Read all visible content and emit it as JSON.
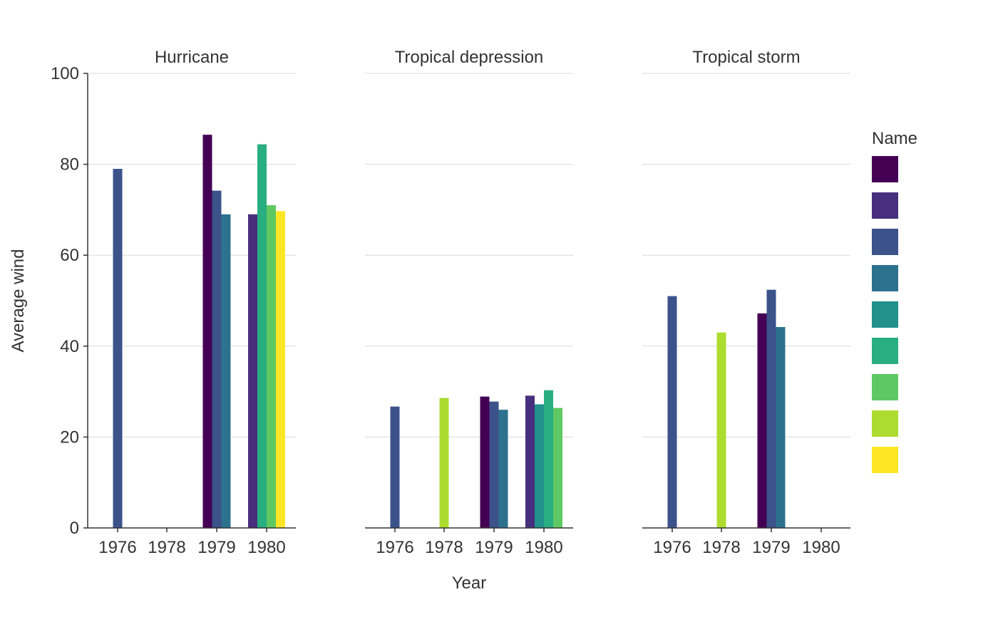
{
  "chart_data": {
    "type": "bar",
    "ylabel": "Average wind",
    "xlabel": "Year",
    "ylim": [
      0,
      100
    ],
    "yticks": [
      0,
      20,
      40,
      60,
      80,
      100
    ],
    "grid": true,
    "categories": [
      "1976",
      "1978",
      "1979",
      "1980"
    ],
    "legend": {
      "title": "Name",
      "placement": "right",
      "colors": [
        "#440154",
        "#472f7d",
        "#3b528b",
        "#2c728e",
        "#21918c",
        "#28ae80",
        "#5ec962",
        "#addc30",
        "#fde725"
      ]
    },
    "facets": [
      {
        "title": "Hurricane",
        "groups": [
          {
            "x": "1976",
            "bars": [
              {
                "s": 2,
                "v": 79
              }
            ]
          },
          {
            "x": "1978",
            "bars": []
          },
          {
            "x": "1979",
            "bars": [
              {
                "s": 0,
                "v": 86.5
              },
              {
                "s": 2,
                "v": 74.2
              },
              {
                "s": 3,
                "v": 69
              }
            ]
          },
          {
            "x": "1980",
            "bars": [
              {
                "s": 1,
                "v": 69
              },
              {
                "s": 5,
                "v": 84.4
              },
              {
                "s": 6,
                "v": 71
              },
              {
                "s": 8,
                "v": 69.7
              }
            ]
          }
        ]
      },
      {
        "title": "Tropical depression",
        "groups": [
          {
            "x": "1976",
            "bars": [
              {
                "s": 2,
                "v": 26.7
              }
            ]
          },
          {
            "x": "1978",
            "bars": [
              {
                "s": 7,
                "v": 28.6
              }
            ]
          },
          {
            "x": "1979",
            "bars": [
              {
                "s": 0,
                "v": 28.9
              },
              {
                "s": 2,
                "v": 27.8
              },
              {
                "s": 3,
                "v": 26
              }
            ]
          },
          {
            "x": "1980",
            "bars": [
              {
                "s": 1,
                "v": 29.1
              },
              {
                "s": 4,
                "v": 27.2
              },
              {
                "s": 5,
                "v": 30.3
              },
              {
                "s": 6,
                "v": 26.4
              }
            ]
          }
        ]
      },
      {
        "title": "Tropical storm",
        "groups": [
          {
            "x": "1976",
            "bars": [
              {
                "s": 2,
                "v": 51
              }
            ]
          },
          {
            "x": "1978",
            "bars": [
              {
                "s": 7,
                "v": 43
              }
            ]
          },
          {
            "x": "1979",
            "bars": [
              {
                "s": 0,
                "v": 47.2
              },
              {
                "s": 2,
                "v": 52.4
              },
              {
                "s": 3,
                "v": 44.2
              }
            ]
          },
          {
            "x": "1980",
            "bars": []
          }
        ]
      }
    ]
  }
}
